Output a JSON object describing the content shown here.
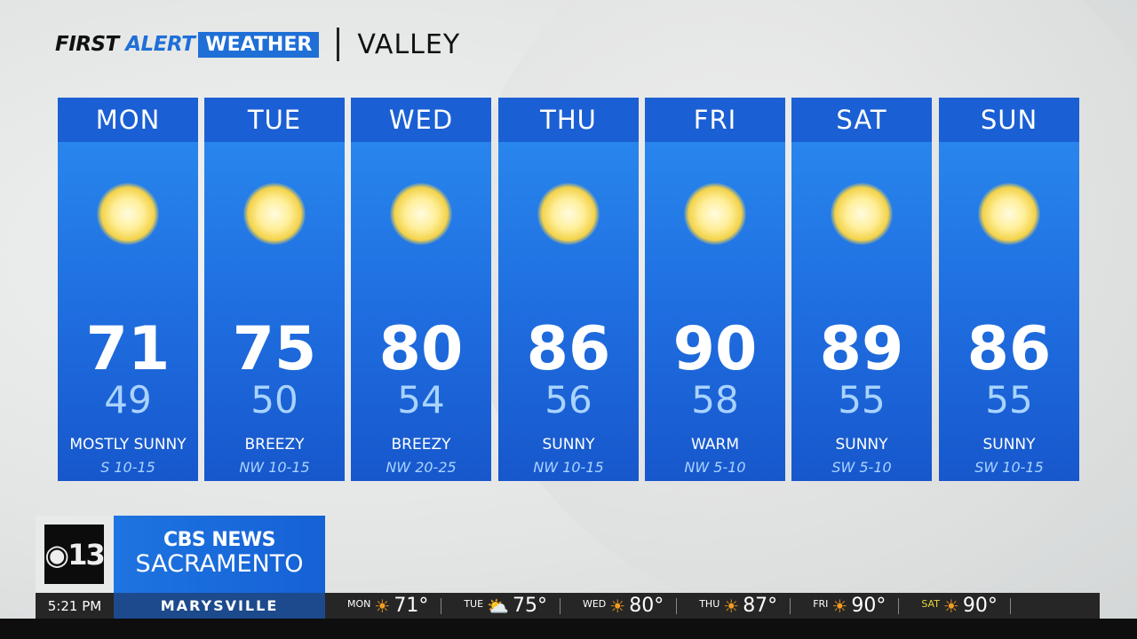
{
  "header": {
    "brand_first": "FIRST",
    "brand_alert": "ALERT",
    "brand_weather": "WEATHER",
    "region": "VALLEY"
  },
  "days": [
    {
      "day": "MON",
      "high": "71",
      "low": "49",
      "condition": "MOSTLY SUNNY",
      "wind": "S 10-15",
      "icon": "sun-icon"
    },
    {
      "day": "TUE",
      "high": "75",
      "low": "50",
      "condition": "BREEZY",
      "wind": "NW 10-15",
      "icon": "sun-icon"
    },
    {
      "day": "WED",
      "high": "80",
      "low": "54",
      "condition": "BREEZY",
      "wind": "NW 20-25",
      "icon": "sun-icon"
    },
    {
      "day": "THU",
      "high": "86",
      "low": "56",
      "condition": "SUNNY",
      "wind": "NW 10-15",
      "icon": "sun-icon"
    },
    {
      "day": "FRI",
      "high": "90",
      "low": "58",
      "condition": "WARM",
      "wind": "NW 5-10",
      "icon": "sun-icon"
    },
    {
      "day": "SAT",
      "high": "89",
      "low": "55",
      "condition": "SUNNY",
      "wind": "SW 5-10",
      "icon": "sun-icon"
    },
    {
      "day": "SUN",
      "high": "86",
      "low": "55",
      "condition": "SUNNY",
      "wind": "SW 10-15",
      "icon": "sun-icon"
    }
  ],
  "station": {
    "logo": "13",
    "network": "CBS NEWS",
    "city": "SACRAMENTO"
  },
  "ticker": {
    "time": "5:21 PM",
    "location": "MARYSVILLE",
    "items": [
      {
        "day": "MON",
        "temp": "71°",
        "icon": "sun-icon"
      },
      {
        "day": "TUE",
        "temp": "75°",
        "icon": "partly-cloudy-icon"
      },
      {
        "day": "WED",
        "temp": "80°",
        "icon": "sun-icon"
      },
      {
        "day": "THU",
        "temp": "87°",
        "icon": "sun-icon"
      },
      {
        "day": "FRI",
        "temp": "90°",
        "icon": "sun-icon"
      },
      {
        "day": "SAT",
        "temp": "90°",
        "icon": "sun-icon",
        "highlight": "#e6d23a"
      }
    ]
  },
  "colors": {
    "accent": "#1f6fd6",
    "card": "#1f6ee0",
    "low_temp": "#a9d3ff"
  }
}
